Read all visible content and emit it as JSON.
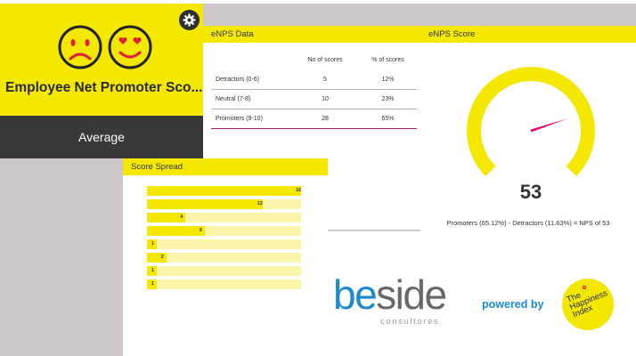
{
  "title_card": {
    "title": "Employee Net Promoter Sco...",
    "rating": "Average",
    "icons": [
      "sad-face-icon",
      "heart-eyes-face-icon",
      "gear-icon"
    ]
  },
  "data_card": {
    "header": "eNPS Data",
    "columns": [
      "No of scores",
      "% of scores"
    ],
    "rows": [
      {
        "label": "Detractors (0-6)",
        "count": "5",
        "pct": "12%"
      },
      {
        "label": "Neutral (7-8)",
        "count": "10",
        "pct": "23%"
      },
      {
        "label": "Promoters (9-10)",
        "count": "28",
        "pct": "65%"
      }
    ]
  },
  "score_card": {
    "header": "eNPS Score",
    "value": "53",
    "min_label": "-100",
    "max_label": "100",
    "needle_value": 53,
    "summary": "Promoters (65.12%) - Detractors (11.63%) = NPS of 53"
  },
  "spread_card": {
    "header": "Score Spread",
    "max": 16,
    "bars": [
      {
        "value": 16,
        "label": "16"
      },
      {
        "value": 12,
        "label": "12"
      },
      {
        "value": 4,
        "label": "4"
      },
      {
        "value": 6,
        "label": "6"
      },
      {
        "value": 1,
        "label": "1"
      },
      {
        "value": 2,
        "label": "2"
      },
      {
        "value": 1,
        "label": "1"
      },
      {
        "value": 1,
        "label": "1"
      }
    ]
  },
  "branding": {
    "beside_be": "be",
    "beside_side": "side",
    "consultores": "consultores",
    "powered_by": "powered by",
    "hi_line1": "The",
    "hi_line2": "Happiness",
    "hi_line3": "Index"
  },
  "colors": {
    "accent_yellow": "#f4e800",
    "dark": "#3b3838",
    "brand_blue": "#1a8ad1",
    "needle": "#e5006d",
    "background": "#cdc8c7"
  }
}
